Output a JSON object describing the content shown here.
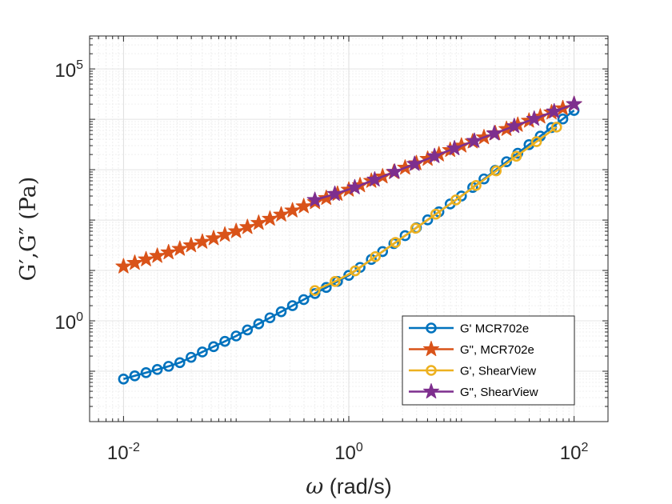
{
  "chart_data": {
    "type": "line",
    "xscale": "log",
    "yscale": "log",
    "xlim": [
      0.005,
      200
    ],
    "ylim": [
      0.01,
      450000
    ],
    "xticks": [
      {
        "value": 0.01,
        "base": "10",
        "exp": "-2"
      },
      {
        "value": 1,
        "base": "10",
        "exp": "0"
      },
      {
        "value": 100,
        "base": "10",
        "exp": "2"
      }
    ],
    "yticks": [
      {
        "value": 1,
        "base": "10",
        "exp": "0"
      },
      {
        "value": 100000,
        "base": "10",
        "exp": "5"
      }
    ],
    "grid": true,
    "xlabel": {
      "symbol": "ω",
      "unit": " (rad/s)"
    },
    "ylabel": "G′,G″ (Pa)",
    "legend_position": "bottom-right",
    "series": [
      {
        "name": "G'  MCR702e",
        "color": "#0072BD",
        "marker": "circle",
        "x_range": [
          0.01,
          100
        ],
        "points_per_decade": 10,
        "anchors": [
          [
            0.01,
            0.07
          ],
          [
            0.03,
            0.14
          ],
          [
            0.1,
            0.5
          ],
          [
            1,
            8
          ],
          [
            10,
            300
          ],
          [
            100,
            15000
          ]
        ]
      },
      {
        "name": "G\",  MCR702e",
        "color": "#D95319",
        "marker": "star",
        "x_range": [
          0.01,
          100
        ],
        "points_per_decade": 10,
        "anchors": [
          [
            0.01,
            12
          ],
          [
            0.1,
            60
          ],
          [
            1,
            400
          ],
          [
            10,
            3000
          ],
          [
            100,
            20000
          ]
        ]
      },
      {
        "name": "G', ShearView",
        "color": "#EDB120",
        "marker": "circle",
        "x_range": [
          0.5,
          70
        ],
        "points_per_decade": 5.5,
        "anchors": [
          [
            0.5,
            4
          ],
          [
            1,
            8
          ],
          [
            10,
            300
          ],
          [
            70,
            7000
          ]
        ]
      },
      {
        "name": "G\", ShearView",
        "color": "#7E2F8E",
        "marker": "star",
        "x_range": [
          0.5,
          100
        ],
        "points_per_decade": 5.5,
        "anchors": [
          [
            0.5,
            250
          ],
          [
            1,
            400
          ],
          [
            10,
            3000
          ],
          [
            100,
            20000
          ]
        ]
      }
    ]
  }
}
